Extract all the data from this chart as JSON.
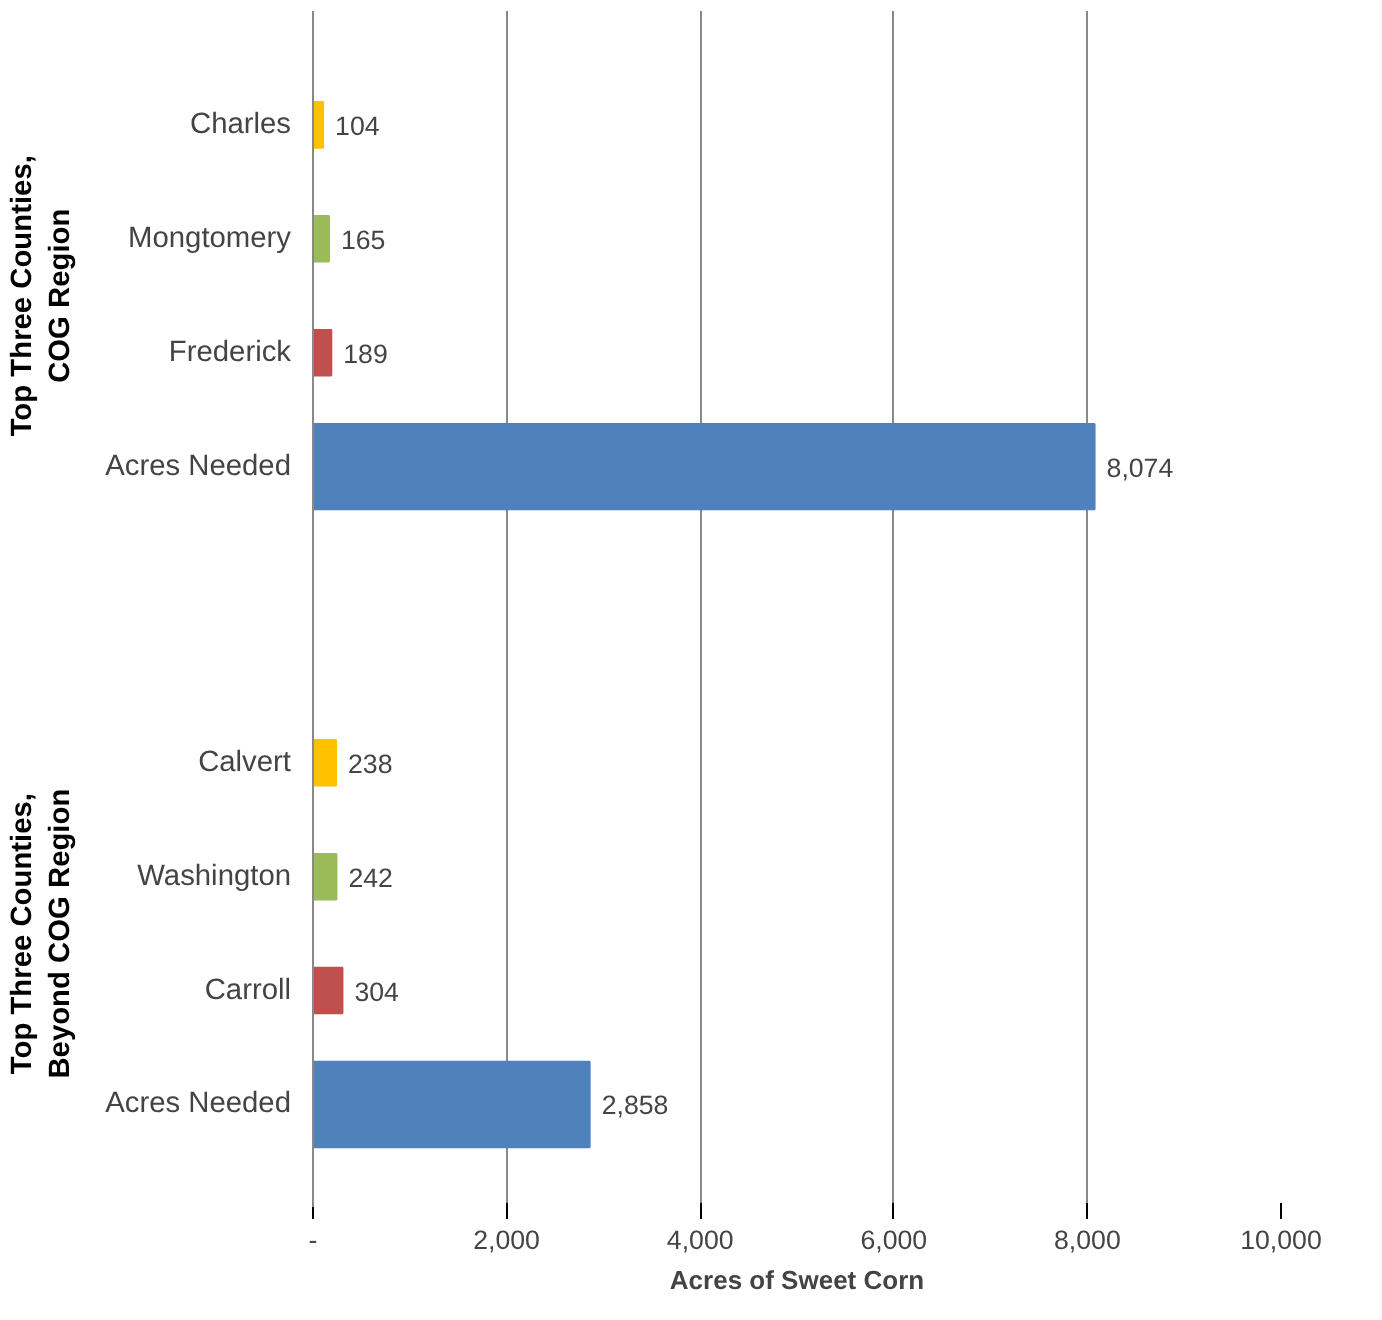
{
  "chart_data": {
    "type": "bar",
    "orientation": "horizontal",
    "xlabel": "Acres of Sweet Corn",
    "categories": [
      "Charles",
      "Mongtomery",
      "Frederick",
      "Acres Needed",
      "Calvert",
      "Washington",
      "Carroll",
      "Acres Needed"
    ],
    "values": [
      104,
      165,
      189,
      8074,
      238,
      242,
      304,
      2858
    ],
    "colors": [
      "#ffc000",
      "#9bbb59",
      "#c0504d",
      "#4f81bd",
      "#ffc000",
      "#9bbb59",
      "#c0504d",
      "#4f81bd"
    ],
    "annotations": [
      "Top Three Counties,\nCOG Region",
      "Top Three Counties,\nBeyond COG Region"
    ],
    "xlim": [
      0,
      10000
    ],
    "xticks": [
      {
        "value": 0,
        "label": "-"
      },
      {
        "value": 2000,
        "label": "2,000"
      },
      {
        "value": 4000,
        "label": "4,000"
      },
      {
        "value": 6000,
        "label": "6,000"
      },
      {
        "value": 8000,
        "label": "8,000"
      },
      {
        "value": 10000,
        "label": "10,000"
      }
    ],
    "value_labels": [
      "104",
      "165",
      "189",
      "8,074",
      "238",
      "242",
      "304",
      "2,858"
    ],
    "grid": "x"
  }
}
